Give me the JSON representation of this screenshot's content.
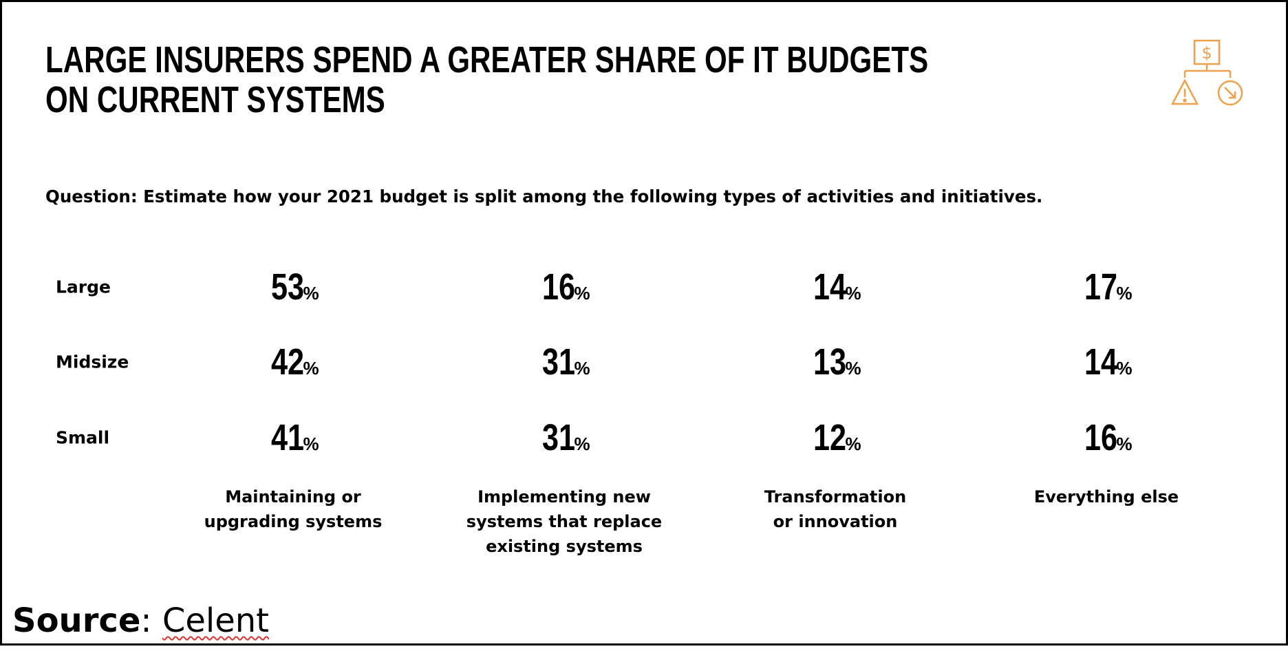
{
  "title": [
    "LARGE INSURERS SPEND A GREATER SHARE OF IT BUDGETS",
    "ON CURRENT SYSTEMS"
  ],
  "question": "Question: Estimate how your 2021 budget is split among the following types of activities and initiatives.",
  "icon": "budget-decision-tree-icon",
  "accent_color": "#f0a04b",
  "rows": [
    {
      "label": "Large",
      "values": [
        "53",
        "16",
        "14",
        "17"
      ]
    },
    {
      "label": "Midsize",
      "values": [
        "42",
        "31",
        "13",
        "14"
      ]
    },
    {
      "label": "Small",
      "values": [
        "41",
        "31",
        "12",
        "16"
      ]
    }
  ],
  "percent_sign": "%",
  "columns": [
    [
      "Maintaining or",
      "upgrading systems"
    ],
    [
      "Implementing new",
      "systems that replace",
      "existing systems"
    ],
    [
      "Transformation",
      "or innovation"
    ],
    [
      "Everything else"
    ]
  ],
  "source": {
    "label": "Source",
    "sep": ":",
    "value": "Celent"
  }
}
